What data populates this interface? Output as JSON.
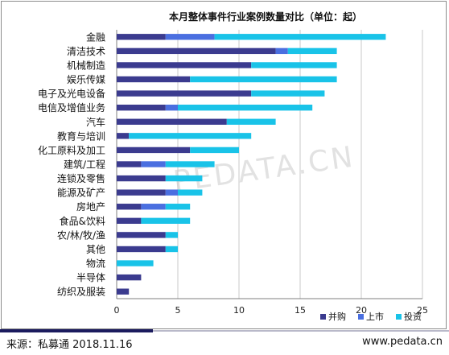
{
  "footer": {
    "source": "来源：私募通 2018.11.16",
    "url": "www.pedata.cn"
  },
  "watermark": "PEDATA.CN",
  "colors": {
    "merger": "#3b3b8f",
    "listing": "#4a6fe0",
    "investment": "#19c3e8",
    "grid": "#c8c8c8",
    "axis": "#7f7f7f"
  },
  "chart_data": {
    "type": "bar",
    "orientation": "horizontal",
    "stacked": true,
    "title": "本月整体事件行业案例数量对比（单位：起）",
    "categories": [
      "金融",
      "清洁技术",
      "机械制造",
      "娱乐传媒",
      "电子及光电设备",
      "电信及增值业务",
      "汽车",
      "教育与培训",
      "化工原料及加工",
      "建筑/工程",
      "连锁及零售",
      "能源及矿产",
      "房地产",
      "食品&饮料",
      "农/林/牧/渔",
      "其他",
      "物流",
      "半导体",
      "纺织及服装"
    ],
    "series": [
      {
        "name": "并购",
        "values": [
          4,
          13,
          11,
          6,
          11,
          4,
          9,
          1,
          6,
          2,
          4,
          4,
          2,
          2,
          4,
          4,
          0,
          2,
          1
        ]
      },
      {
        "name": "上市",
        "values": [
          4,
          1,
          0,
          0,
          0,
          1,
          0,
          0,
          0,
          2,
          0,
          1,
          2,
          0,
          0,
          0,
          0,
          0,
          0
        ]
      },
      {
        "name": "投资",
        "values": [
          14,
          4,
          7,
          12,
          6,
          11,
          4,
          10,
          4,
          4,
          3,
          2,
          2,
          4,
          1,
          1,
          3,
          0,
          0
        ]
      }
    ],
    "xlim": [
      0,
      25
    ],
    "xticks": [
      "0",
      "5",
      "10",
      "15",
      "20",
      "25"
    ],
    "grid": true,
    "legend": "bottom-right"
  }
}
